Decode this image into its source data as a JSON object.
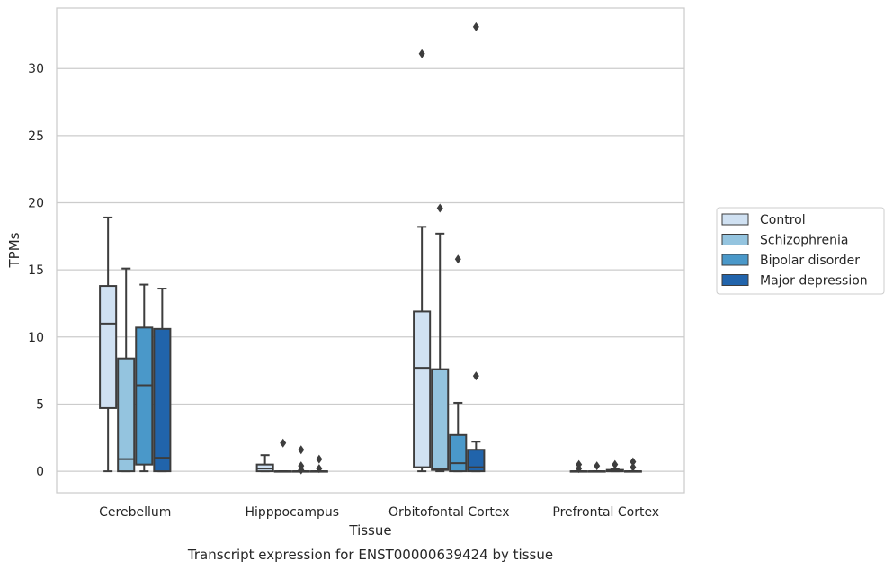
{
  "chart_data": {
    "type": "box",
    "xlabel": "Tissue",
    "ylabel": "TPMs",
    "caption": "Transcript expression for ENST00000639424 by tissue",
    "ylim": [
      -1.6,
      34.5
    ],
    "yticks": [
      0,
      5,
      10,
      15,
      20,
      25,
      30
    ],
    "grid": "horizontal",
    "legend_position": "right",
    "categories": [
      "Cerebellum",
      "Hipppocampus",
      "Orbitofontal Cortex",
      "Prefrontal Cortex"
    ],
    "series": [
      {
        "name": "Control",
        "color": "#d0e1f2",
        "boxes": [
          {
            "whisker_low": 0,
            "q1": 4.7,
            "median": 11.0,
            "q3": 13.8,
            "whisker_high": 18.9,
            "outliers": []
          },
          {
            "whisker_low": 0,
            "q1": 0,
            "median": 0.2,
            "q3": 0.5,
            "whisker_high": 1.2,
            "outliers": []
          },
          {
            "whisker_low": 0,
            "q1": 0.3,
            "median": 7.7,
            "q3": 11.9,
            "whisker_high": 18.2,
            "outliers": [
              31.1
            ]
          },
          {
            "whisker_low": 0,
            "q1": 0,
            "median": 0,
            "q3": 0,
            "whisker_high": 0,
            "outliers": [
              0.2,
              0.5
            ]
          }
        ]
      },
      {
        "name": "Schizophrenia",
        "color": "#94c4df",
        "boxes": [
          {
            "whisker_low": 0,
            "q1": 0,
            "median": 0.9,
            "q3": 8.4,
            "whisker_high": 15.1,
            "outliers": []
          },
          {
            "whisker_low": 0,
            "q1": 0,
            "median": 0,
            "q3": 0,
            "whisker_high": 0,
            "outliers": [
              2.1
            ]
          },
          {
            "whisker_low": 0,
            "q1": 0.1,
            "median": 0.2,
            "q3": 7.6,
            "whisker_high": 17.7,
            "outliers": [
              19.6
            ]
          },
          {
            "whisker_low": 0,
            "q1": 0,
            "median": 0,
            "q3": 0,
            "whisker_high": 0,
            "outliers": [
              0.4
            ]
          }
        ]
      },
      {
        "name": "Bipolar disorder",
        "color": "#4a98c9",
        "boxes": [
          {
            "whisker_low": 0,
            "q1": 0.5,
            "median": 6.4,
            "q3": 10.7,
            "whisker_high": 13.9,
            "outliers": []
          },
          {
            "whisker_low": 0,
            "q1": 0,
            "median": 0,
            "q3": 0,
            "whisker_high": 0,
            "outliers": [
              1.6,
              0.4,
              0.1
            ]
          },
          {
            "whisker_low": 0,
            "q1": 0,
            "median": 0.6,
            "q3": 2.7,
            "whisker_high": 5.1,
            "outliers": [
              15.8
            ]
          },
          {
            "whisker_low": 0,
            "q1": 0,
            "median": 0,
            "q3": 0.1,
            "whisker_high": 0.2,
            "outliers": [
              0.5
            ]
          }
        ]
      },
      {
        "name": "Major depression",
        "color": "#2164ab",
        "boxes": [
          {
            "whisker_low": 0,
            "q1": 0,
            "median": 1.0,
            "q3": 10.6,
            "whisker_high": 13.6,
            "outliers": []
          },
          {
            "whisker_low": 0,
            "q1": 0,
            "median": 0,
            "q3": 0,
            "whisker_high": 0,
            "outliers": [
              0.9,
              0.2
            ]
          },
          {
            "whisker_low": 0,
            "q1": 0,
            "median": 0.3,
            "q3": 1.6,
            "whisker_high": 2.2,
            "outliers": [
              7.1,
              33.1
            ]
          },
          {
            "whisker_low": 0,
            "q1": 0,
            "median": 0,
            "q3": 0,
            "whisker_high": 0,
            "outliers": [
              0.7,
              0.3
            ]
          }
        ]
      }
    ]
  }
}
